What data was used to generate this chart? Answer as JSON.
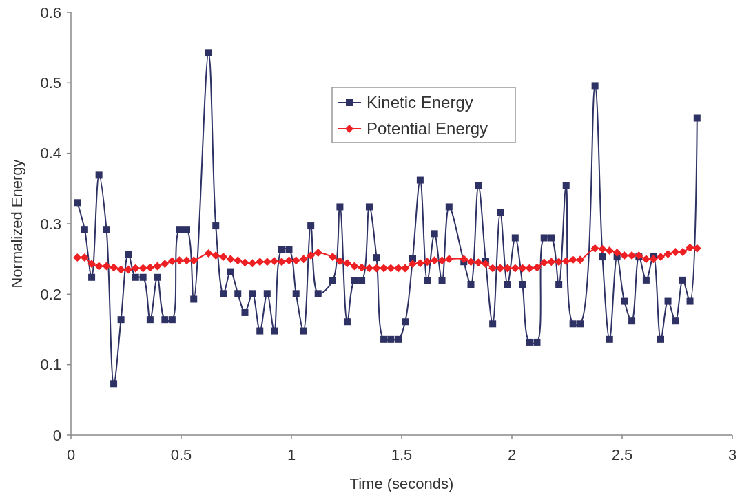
{
  "chart_data": {
    "type": "line",
    "xlabel": "Time (seconds)",
    "ylabel": "Normalized Energy",
    "x": [
      0.029,
      0.062,
      0.094,
      0.127,
      0.161,
      0.194,
      0.227,
      0.26,
      0.293,
      0.327,
      0.359,
      0.392,
      0.426,
      0.459,
      0.492,
      0.525,
      0.557,
      0.624,
      0.657,
      0.691,
      0.724,
      0.757,
      0.789,
      0.823,
      0.857,
      0.89,
      0.922,
      0.956,
      0.989,
      1.021,
      1.055,
      1.088,
      1.121,
      1.187,
      1.22,
      1.253,
      1.286,
      1.319,
      1.353,
      1.386,
      1.419,
      1.451,
      1.485,
      1.516,
      1.55,
      1.584,
      1.616,
      1.649,
      1.683,
      1.715,
      1.782,
      1.814,
      1.848,
      1.881,
      1.913,
      1.947,
      1.98,
      2.015,
      2.048,
      2.08,
      2.114,
      2.146,
      2.179,
      2.213,
      2.246,
      2.277,
      2.31,
      2.377,
      2.411,
      2.443,
      2.477,
      2.51,
      2.544,
      2.576,
      2.609,
      2.642,
      2.675,
      2.708,
      2.742,
      2.775,
      2.808,
      2.84
    ],
    "series": [
      {
        "name": "Kinetic Energy",
        "color": "#2e3163",
        "marker": "square",
        "values": [
          0.33,
          0.292,
          0.224,
          0.369,
          0.292,
          0.073,
          0.164,
          0.257,
          0.224,
          0.224,
          0.164,
          0.224,
          0.164,
          0.164,
          0.292,
          0.292,
          0.193,
          0.543,
          0.297,
          0.201,
          0.232,
          0.201,
          0.174,
          0.201,
          0.148,
          0.201,
          0.148,
          0.263,
          0.263,
          0.201,
          0.148,
          0.297,
          0.201,
          0.219,
          0.324,
          0.161,
          0.219,
          0.219,
          0.324,
          0.252,
          0.136,
          0.136,
          0.136,
          0.161,
          0.251,
          0.362,
          0.219,
          0.286,
          0.219,
          0.324,
          0.246,
          0.214,
          0.354,
          0.247,
          0.158,
          0.316,
          0.214,
          0.28,
          0.214,
          0.132,
          0.132,
          0.28,
          0.28,
          0.214,
          0.354,
          0.158,
          0.158,
          0.496,
          0.253,
          0.136,
          0.253,
          0.19,
          0.162,
          0.253,
          0.22,
          0.254,
          0.136,
          0.19,
          0.162,
          0.22,
          0.19,
          0.45
        ]
      },
      {
        "name": "Potential Energy",
        "color": "#ee2024",
        "marker": "diamond",
        "values": [
          0.252,
          0.252,
          0.243,
          0.24,
          0.24,
          0.238,
          0.235,
          0.235,
          0.237,
          0.237,
          0.238,
          0.24,
          0.243,
          0.247,
          0.248,
          0.248,
          0.248,
          0.258,
          0.255,
          0.253,
          0.25,
          0.248,
          0.245,
          0.244,
          0.246,
          0.246,
          0.247,
          0.246,
          0.248,
          0.248,
          0.25,
          0.255,
          0.259,
          0.253,
          0.247,
          0.244,
          0.24,
          0.238,
          0.237,
          0.237,
          0.237,
          0.237,
          0.237,
          0.237,
          0.243,
          0.244,
          0.246,
          0.248,
          0.248,
          0.25,
          0.25,
          0.246,
          0.245,
          0.243,
          0.237,
          0.237,
          0.237,
          0.237,
          0.237,
          0.237,
          0.238,
          0.245,
          0.246,
          0.246,
          0.247,
          0.249,
          0.249,
          0.265,
          0.264,
          0.262,
          0.259,
          0.255,
          0.255,
          0.255,
          0.25,
          0.25,
          0.253,
          0.257,
          0.26,
          0.26,
          0.266,
          0.265
        ]
      }
    ],
    "xlim": [
      0,
      3
    ],
    "xticks": [
      0,
      0.5,
      1,
      1.5,
      2,
      2.5,
      3
    ],
    "ylim": [
      0,
      0.6
    ],
    "yticks": [
      0,
      0.1,
      0.2,
      0.3,
      0.4,
      0.5,
      0.6
    ],
    "grid": false,
    "legend": "top"
  }
}
